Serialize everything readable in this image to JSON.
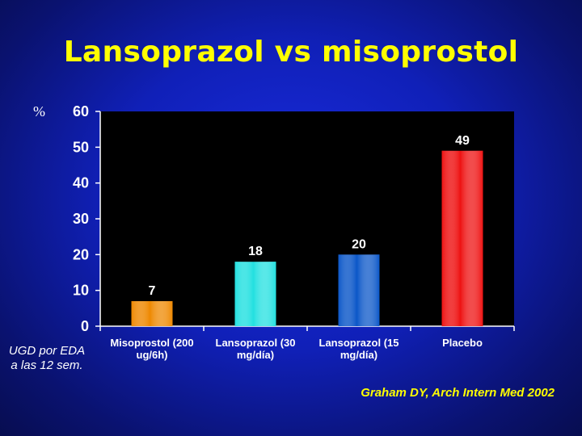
{
  "title": "Lansoprazol vs misoprostol",
  "ylabel": "%",
  "note": "UGD por EDA a las 12 sem.",
  "source": "Graham DY, Arch Intern Med 2002",
  "chart_data": {
    "type": "bar",
    "categories": [
      "Misoprostol (200 ug/6h)",
      "Lansoprazol (30 mg/día)",
      "Lansoprazol (15 mg/día)",
      "Placebo"
    ],
    "values": [
      7,
      18,
      20,
      49
    ],
    "data_labels": [
      "7",
      "18",
      "20",
      "49"
    ],
    "bar_colors": [
      "#ee8800",
      "#22e0e0",
      "#0a56c8",
      "#ee1111"
    ],
    "ylim": [
      0,
      60
    ],
    "yticks": [
      0,
      10,
      20,
      30,
      40,
      50,
      60
    ],
    "ylabel": "%",
    "grid": false,
    "plot_background": "#000000"
  }
}
